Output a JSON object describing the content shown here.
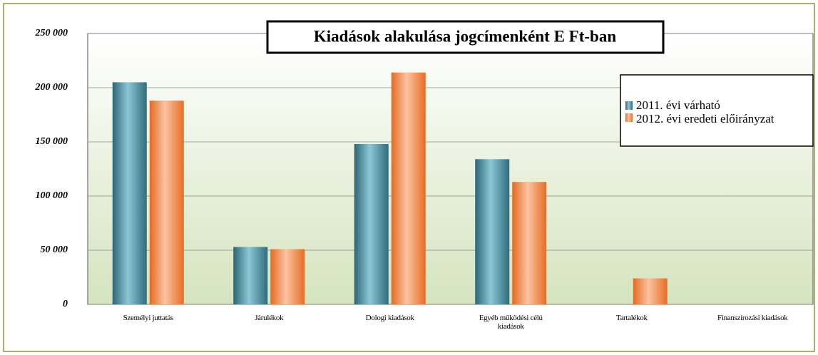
{
  "chart_data": {
    "type": "bar",
    "title": "Kiadások alakulása jogcímenként E Ft-ban",
    "categories": [
      "Személyi juttatás",
      "Járulékok",
      "Dologi kiadások",
      "Egyéb működési célú kiadások",
      "Tartalékok",
      "Finanszírozási kiadások"
    ],
    "series": [
      {
        "name": "2011. évi várható",
        "color": "#3f8a9c",
        "values": [
          205000,
          53000,
          148000,
          134000,
          0,
          0
        ]
      },
      {
        "name": "2012. évi eredeti előirányzat",
        "color": "#f08a4b",
        "values": [
          188000,
          51000,
          214000,
          113000,
          24000,
          0
        ]
      }
    ],
    "ylim": [
      0,
      250000
    ],
    "yticks": [
      {
        "value": 0,
        "label": "0"
      },
      {
        "value": 50000,
        "label": "50 000"
      },
      {
        "value": 100000,
        "label": "100 000"
      },
      {
        "value": 150000,
        "label": "150 000"
      },
      {
        "value": 200000,
        "label": "200 000"
      },
      {
        "value": 250000,
        "label": "250 000"
      }
    ],
    "grid": true,
    "legend": "top-right"
  }
}
